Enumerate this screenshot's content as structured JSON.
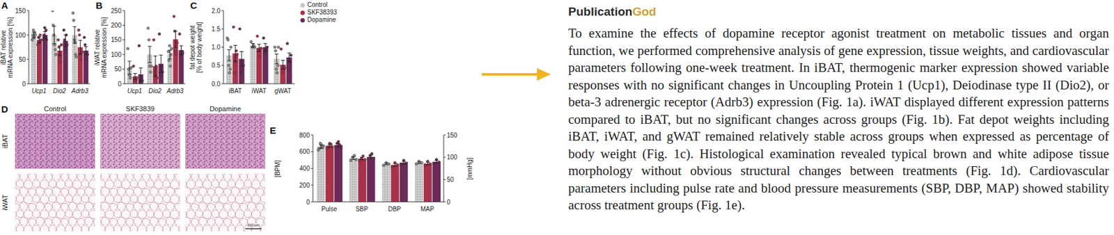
{
  "chart_data": [
    {
      "type": "bar",
      "title": "A",
      "y_label": [
        "iBAT relative",
        "mRNA expression [%]"
      ],
      "categories": [
        "Ucp1",
        "Dio2",
        "Adrb3"
      ],
      "ylim": [
        0,
        150
      ],
      "yticks": [
        0,
        50,
        100,
        150
      ],
      "series": [
        {
          "name": "Control",
          "color": "#c4c4c4",
          "values": [
            100,
            100,
            100
          ],
          "errors": [
            6,
            18,
            17
          ],
          "points": [
            [
              90,
              100,
              110,
              95,
              105,
              100
            ],
            [
              150,
              120,
              100,
              80,
              70,
              60
            ],
            [
              145,
              130,
              90,
              85,
              60,
              55
            ]
          ]
        },
        {
          "name": "SKF38393",
          "color": "#a8324a",
          "values": [
            90,
            68,
            75
          ],
          "errors": [
            6,
            10,
            14
          ],
          "points": [
            [
              80,
              95,
              85,
              100,
              90
            ],
            [
              90,
              75,
              55,
              45,
              80
            ],
            [
              110,
              100,
              60,
              50,
              65
            ]
          ]
        },
        {
          "name": "Dopamine",
          "color": "#6b2a58",
          "values": [
            100,
            88,
            68
          ],
          "errors": [
            7,
            12,
            8
          ],
          "points": [
            [
              90,
              100,
              115,
              95,
              110,
              90
            ],
            [
              110,
              90,
              70,
              100,
              80
            ],
            [
              95,
              80,
              55,
              50,
              60
            ]
          ]
        }
      ]
    },
    {
      "type": "bar",
      "title": "B",
      "y_label": [
        "iWAT relative",
        "mRNA expression [%]"
      ],
      "categories": [
        "Ucp1",
        "Dio2",
        "Adrb3"
      ],
      "ylim": [
        0,
        250
      ],
      "yticks": [
        0,
        50,
        100,
        150,
        200,
        250
      ],
      "series": [
        {
          "name": "Control",
          "color": "#c4c4c4",
          "values": [
            55,
            100,
            100
          ],
          "errors": [
            22,
            28,
            15
          ],
          "points": [
            [
              120,
              50,
              30,
              20,
              55
            ],
            [
              190,
              150,
              60,
              40,
              60
            ],
            [
              110,
              80,
              130,
              60,
              100,
              120
            ]
          ]
        },
        {
          "name": "SKF38393",
          "color": "#a8324a",
          "values": [
            25,
            60,
            152
          ],
          "errors": [
            10,
            35,
            28
          ],
          "points": [
            [
              60,
              20,
              10,
              15,
              20
            ],
            [
              150,
              40,
              30,
              60,
              20
            ],
            [
              230,
              180,
              110,
              100,
              140
            ]
          ]
        },
        {
          "name": "Dopamine",
          "color": "#6b2a58",
          "values": [
            32,
            68,
            115
          ],
          "errors": [
            22,
            30,
            15
          ],
          "points": [
            [
              130,
              10,
              5,
              5,
              10
            ],
            [
              170,
              40,
              30,
              60,
              40
            ],
            [
              170,
              90,
              100,
              110,
              105
            ]
          ]
        }
      ]
    },
    {
      "type": "bar",
      "title": "C",
      "y_label": [
        "fat depot weight",
        "[% of body weight]"
      ],
      "categories": [
        "iBAT",
        "iWAT",
        "gWAT"
      ],
      "ylim": [
        0,
        2
      ],
      "yticks": [
        {
          "value": 0,
          "label": "0.0"
        },
        0.5,
        {
          "value": 1,
          "label": "1.0"
        },
        1.5,
        {
          "value": 2,
          "label": "2.0"
        }
      ],
      "legend": "upper right",
      "series": [
        {
          "name": "Control",
          "color": "#c4c4c4",
          "values": [
            0.78,
            1.05,
            0.68
          ],
          "errors": [
            0.15,
            0.05,
            0.13
          ],
          "points": [
            [
              1.25,
              1.2,
              0.5,
              0.3,
              0.4,
              1.0
            ],
            [
              1.15,
              1.0,
              1.05,
              1.0
            ],
            [
              1.0,
              0.9,
              0.4,
              0.3,
              0.5,
              1.0
            ]
          ]
        },
        {
          "name": "SKF38393",
          "color": "#a8324a",
          "values": [
            0.83,
            0.98,
            0.52
          ],
          "errors": [
            0.22,
            0.1,
            0.12
          ],
          "points": [
            [
              1.55,
              0.3,
              0.6,
              0.9,
              0.8
            ],
            [
              1.3,
              0.9,
              0.75,
              0.97
            ],
            [
              0.95,
              0.3,
              0.4,
              0.43
            ]
          ]
        },
        {
          "name": "Dopamine",
          "color": "#6b2a58",
          "values": [
            0.68,
            1.0,
            0.72
          ],
          "errors": [
            0.2,
            0.1,
            0.12
          ],
          "points": [
            [
              1.5,
              0.3,
              0.4,
              0.5
            ],
            [
              1.25,
              0.85,
              0.9,
              1.0
            ],
            [
              1.1,
              0.4,
              0.6,
              0.78
            ]
          ]
        }
      ]
    },
    {
      "type": "bar",
      "title": "E",
      "y_label": [
        "[BPM]"
      ],
      "categories": [
        "Pulse"
      ],
      "ylim": [
        0,
        800
      ],
      "yticks": [
        0,
        200,
        400,
        600,
        800
      ],
      "series": [
        {
          "name": "Control",
          "color": "#c4c4c4",
          "values": [
            660
          ],
          "errors": [
            20
          ],
          "points": [
            [
              620,
              640,
              700,
              680,
              650,
              670
            ]
          ]
        },
        {
          "name": "SKF38393",
          "color": "#a8324a",
          "values": [
            670
          ],
          "errors": [
            18
          ],
          "points": [
            [
              640,
              660,
              700,
              690,
              660
            ]
          ]
        },
        {
          "name": "Dopamine",
          "color": "#6b2a58",
          "values": [
            680
          ],
          "errors": [
            20
          ],
          "points": [
            [
              650,
              700,
              720,
              680,
              650
            ]
          ]
        }
      ]
    },
    {
      "type": "bar",
      "y2_label": [
        "[mmHg]"
      ],
      "categories": [
        "SBP",
        "DBP",
        "MAP"
      ],
      "y2lim": [
        0,
        150
      ],
      "y2ticks": [
        0,
        50,
        100,
        150
      ],
      "series": [
        {
          "name": "Control",
          "color": "#c4c4c4",
          "axis": "y2",
          "values": [
            98,
            85,
            88
          ],
          "errors": [
            3,
            2,
            2
          ],
          "points": [
            [
              93,
              100,
              104,
              95
            ],
            [
              82,
              88,
              85
            ],
            [
              85,
              91,
              88
            ]
          ]
        },
        {
          "name": "SKF38393",
          "color": "#a8324a",
          "axis": "y2",
          "values": [
            97,
            83,
            86
          ],
          "errors": [
            3,
            3,
            3
          ],
          "points": [
            [
              92,
              98,
              103,
              95
            ],
            [
              78,
              88,
              83
            ],
            [
              82,
              91,
              85
            ]
          ]
        },
        {
          "name": "Dopamine",
          "color": "#6b2a58",
          "axis": "y2",
          "values": [
            101,
            88,
            90
          ],
          "errors": [
            4,
            3,
            3
          ],
          "points": [
            [
              96,
              104,
              108,
              96
            ],
            [
              84,
              93,
              87
            ],
            [
              86,
              95,
              89
            ]
          ]
        }
      ]
    }
  ],
  "histology": {
    "title": "D",
    "columns": [
      "Control",
      "SKF3839",
      "Dopamine"
    ],
    "rows": [
      "iBAT",
      "iWAT"
    ],
    "scale_bar": "100 µm"
  },
  "document": {
    "logo": [
      "Publication",
      "God"
    ],
    "text": "To examine the effects of dopamine receptor agonist treatment on metabolic tissues and organ function, we performed comprehensive analysis of gene expression, tissue weights, and cardiovascular parameters following one-week treatment. In iBAT, thermogenic marker expression showed variable responses with no significant changes in Uncoupling Protein 1 (Ucp1), Deiodinase type II (Dio2), or beta-3 adrenergic receptor (Adrb3) expression (Fig. 1a). iWAT displayed different expression patterns compared to iBAT, but no significant changes across groups (Fig. 1b). Fat depot weights including iBAT, iWAT, and gWAT remained relatively stable across groups when expressed as percentage of body weight (Fig. 1c). Histological examination revealed typical brown and white adipose tissue morphology without obvious structural changes between treatments (Fig. 1d). Cardiovascular parameters including pulse rate and blood pressure measurements (SBP, DBP, MAP) showed stability across treatment groups (Fig. 1e)."
  }
}
